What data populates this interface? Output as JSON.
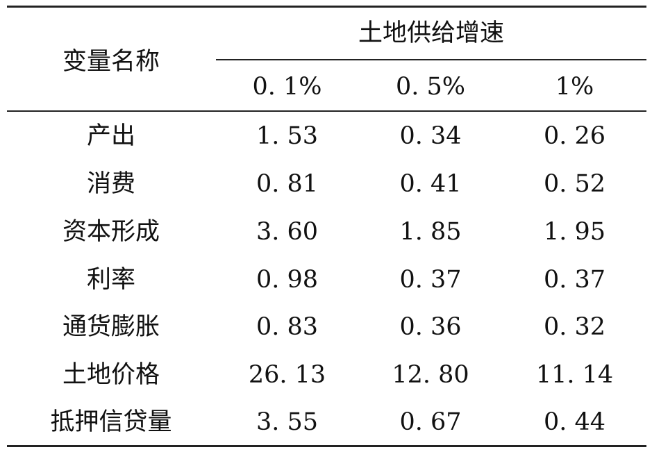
{
  "table": {
    "name_header": "变量名称",
    "group_header": "土地供给增速",
    "sub_headers": [
      "0. 1%",
      "0. 5%",
      "1%"
    ],
    "rows": [
      {
        "name": "产出",
        "values": [
          "1. 53",
          "0. 34",
          "0. 26"
        ]
      },
      {
        "name": "消费",
        "values": [
          "0. 81",
          "0. 41",
          "0. 52"
        ]
      },
      {
        "name": "资本形成",
        "values": [
          "3. 60",
          "1. 85",
          "1. 95"
        ]
      },
      {
        "name": "利率",
        "values": [
          "0. 98",
          "0. 37",
          "0. 37"
        ]
      },
      {
        "name": "通货膨胀",
        "values": [
          "0. 83",
          "0. 36",
          "0. 32"
        ]
      },
      {
        "name": "土地价格",
        "values": [
          "26. 13",
          "12. 80",
          "11. 14"
        ]
      },
      {
        "name": "抵押信贷量",
        "values": [
          "3. 55",
          "0. 67",
          "0. 44"
        ]
      }
    ]
  }
}
